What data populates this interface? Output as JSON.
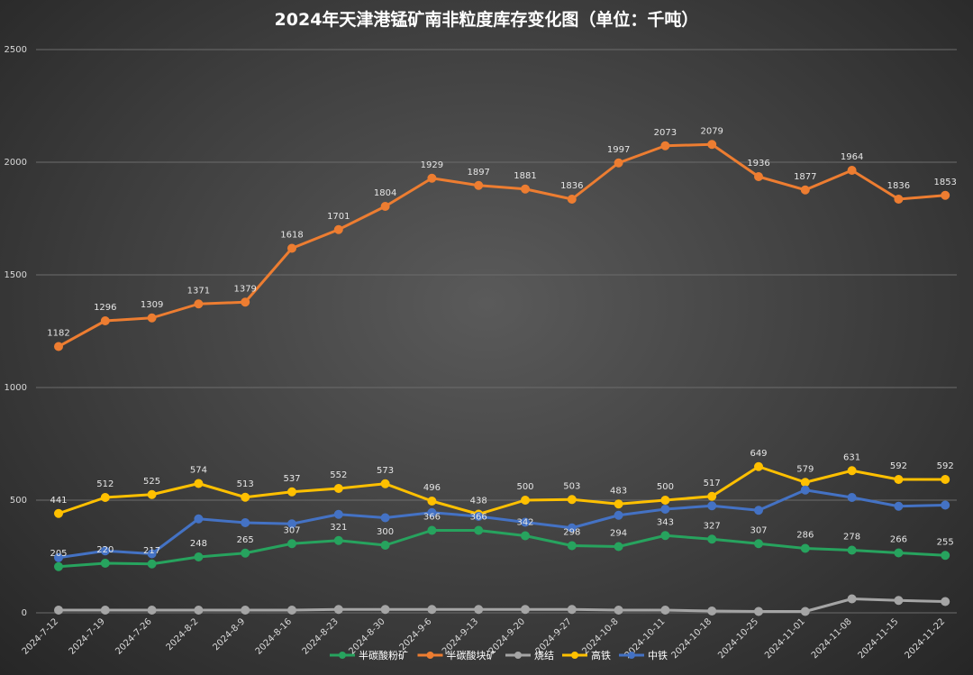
{
  "chart_data": {
    "type": "line",
    "title": "2024年天津港锰矿南非粒度库存变化图（单位：千吨）",
    "xlabel": "",
    "ylabel": "",
    "ylim": [
      0,
      2500
    ],
    "y_ticks": [
      "0",
      "500",
      "1000",
      "1500",
      "2000",
      "2500"
    ],
    "grid": true,
    "legend_position": "bottom",
    "categories": [
      "2024-7-12",
      "2024-7-19",
      "2024-7-26",
      "2024-8-2",
      "2024-8-9",
      "2024-8-16",
      "2024-8-23",
      "2024-8-30",
      "2024-9-6",
      "2024-9-13",
      "2024-9-20",
      "2024-9-27",
      "2024-10-8",
      "2024-10-11",
      "2024-10-18",
      "2024-10-25",
      "2024-11-01",
      "2024-11-08",
      "2024-11-15",
      "2024-11-22"
    ],
    "series": [
      {
        "name": "半碳酸粉矿",
        "color": "#27a35e",
        "values": [
          205,
          220,
          217,
          248,
          265,
          307,
          321,
          300,
          366,
          366,
          342,
          298,
          294,
          343,
          327,
          307,
          286,
          278,
          266,
          255
        ],
        "labels": [
          "205",
          "220",
          "217",
          "248",
          "265",
          "307",
          "321",
          "300",
          "366",
          "366",
          "342",
          "298",
          "294",
          "343",
          "327",
          "307",
          "286",
          "278",
          "266",
          "255"
        ]
      },
      {
        "name": "半碳酸块矿",
        "color": "#ed7d31",
        "values": [
          1182,
          1296,
          1309,
          1371,
          1379,
          1618,
          1701,
          1804,
          1929,
          1897,
          1881,
          1836,
          1997,
          2073,
          2079,
          1936,
          1877,
          1964,
          1836,
          1853
        ],
        "labels": [
          "1182",
          "1296",
          "1309",
          "1371",
          "1379",
          "1618",
          "1701",
          "1804",
          "1929",
          "1897",
          "1881",
          "1836",
          "1997",
          "2073",
          "2079",
          "1936",
          "1877",
          "1964",
          "1836",
          "1853"
        ]
      },
      {
        "name": "烧结",
        "color": "#a5a5a5",
        "values": [
          12,
          12,
          12,
          12,
          12,
          12,
          15,
          15,
          15,
          15,
          15,
          15,
          12,
          12,
          8,
          6,
          6,
          62,
          55,
          50
        ],
        "labels": []
      },
      {
        "name": "高铁",
        "color": "#ffc000",
        "values": [
          441,
          512,
          525,
          574,
          513,
          537,
          552,
          573,
          496,
          438,
          500,
          503,
          483,
          500,
          517,
          649,
          579,
          631,
          592,
          592
        ],
        "labels": [
          "441",
          "512",
          "525",
          "574",
          "513",
          "537",
          "552",
          "573",
          "496",
          "438",
          "500",
          "503",
          "483",
          "500",
          "517",
          "649",
          "579",
          "631",
          "592",
          "592"
        ]
      },
      {
        "name": "中铁",
        "color": "#4472c4",
        "values": [
          245,
          275,
          262,
          417,
          400,
          395,
          437,
          422,
          445,
          428,
          402,
          377,
          433,
          460,
          475,
          455,
          545,
          512,
          473,
          478
        ],
        "labels": []
      }
    ]
  }
}
